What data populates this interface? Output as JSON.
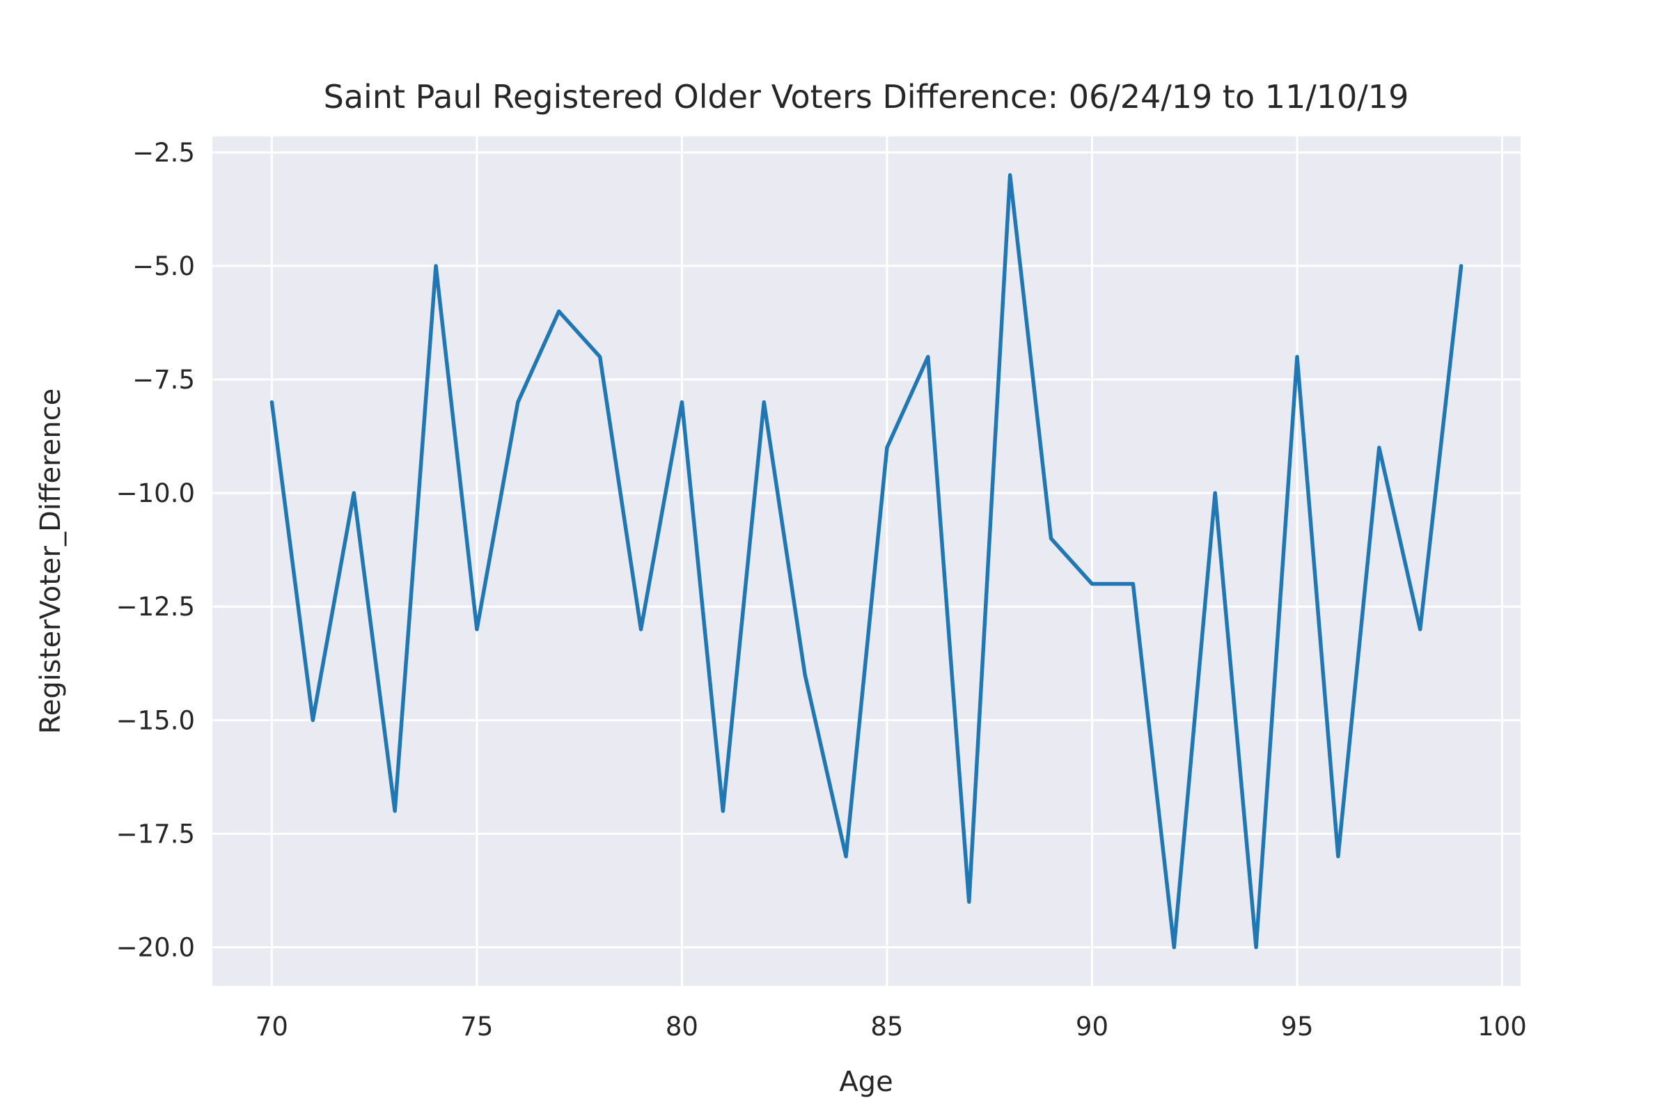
{
  "chart_data": {
    "type": "line",
    "title": "Saint Paul Registered Older Voters Difference: 06/24/19 to 11/10/19",
    "xlabel": "Age",
    "ylabel": "RegisterVoter_Difference",
    "xlim": [
      68.55,
      100.45
    ],
    "ylim": [
      -20.85,
      -2.15
    ],
    "xticks": [
      70,
      75,
      80,
      85,
      90,
      95,
      100
    ],
    "xtick_labels": [
      "70",
      "75",
      "80",
      "85",
      "90",
      "95",
      "100"
    ],
    "yticks": [
      -2.5,
      -5.0,
      -7.5,
      -10.0,
      -12.5,
      -15.0,
      -17.5,
      -20.0
    ],
    "ytick_labels": [
      "−2.5",
      "−5.0",
      "−7.5",
      "−10.0",
      "−12.5",
      "−15.0",
      "−17.5",
      "−20.0"
    ],
    "grid": true,
    "background_color": "#eaeaf2",
    "grid_color": "#ffffff",
    "series": [
      {
        "color": "#1f77b4",
        "x": [
          70,
          71,
          72,
          73,
          74,
          75,
          76,
          77,
          78,
          79,
          80,
          81,
          82,
          83,
          84,
          85,
          86,
          87,
          88,
          89,
          90,
          91,
          92,
          93,
          94,
          95,
          96,
          97,
          98,
          99
        ],
        "y": [
          -8,
          -15,
          -10,
          -17,
          -5,
          -13,
          -8,
          -6,
          -7,
          -13,
          -8,
          -17,
          -8,
          -14,
          -18,
          -9,
          -7,
          -19,
          -3,
          -11,
          -12,
          -12,
          -20,
          -10,
          -20,
          -7,
          -18,
          -9,
          -13,
          -5
        ]
      }
    ]
  }
}
